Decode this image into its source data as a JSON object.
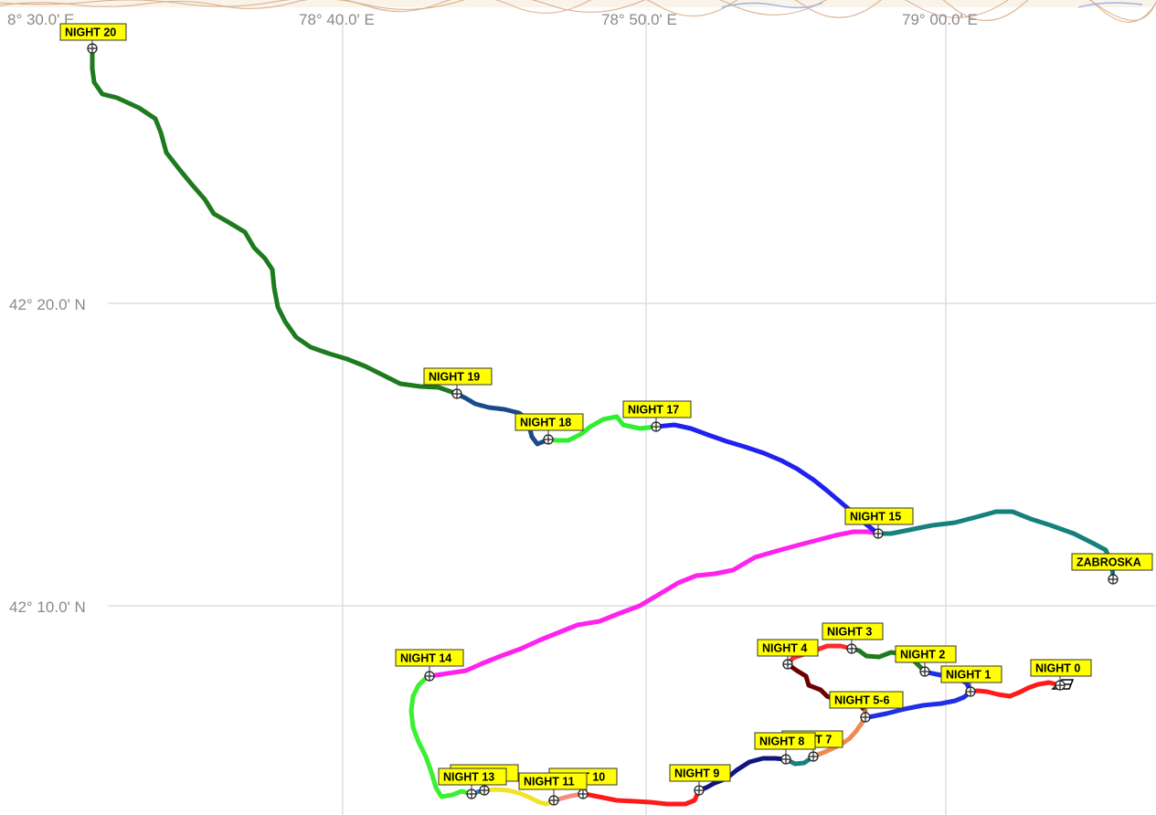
{
  "map": {
    "grid": {
      "longitude_labels": [
        "8° 30.0' E",
        "78° 40.0' E",
        "78° 50.0' E",
        "79° 00.0' E"
      ],
      "latitude_labels": [
        "42° 20.0' N",
        "42° 10.0' N"
      ]
    },
    "waypoints": [
      {
        "id": "night20",
        "label": "NIGHT 20"
      },
      {
        "id": "night19",
        "label": "NIGHT 19"
      },
      {
        "id": "night18",
        "label": "NIGHT 18"
      },
      {
        "id": "night17",
        "label": "NIGHT 17"
      },
      {
        "id": "night15",
        "label": "NIGHT 15"
      },
      {
        "id": "zabroska",
        "label": "ZABROSKA"
      },
      {
        "id": "night14",
        "label": "NIGHT 14"
      },
      {
        "id": "night3",
        "label": "NIGHT 3"
      },
      {
        "id": "night4",
        "label": "NIGHT 4"
      },
      {
        "id": "night2",
        "label": "NIGHT 2"
      },
      {
        "id": "night1",
        "label": "NIGHT 1"
      },
      {
        "id": "night0",
        "label": "NIGHT 0"
      },
      {
        "id": "night56",
        "label": "NIGHT 5-6"
      },
      {
        "id": "night7",
        "label": "NIGHT 7"
      },
      {
        "id": "night8",
        "label": "NIGHT 8"
      },
      {
        "id": "night9",
        "label": "NIGHT 9"
      },
      {
        "id": "night12",
        "label": "NIGHT 12"
      },
      {
        "id": "night13",
        "label": "NIGHT 13"
      },
      {
        "id": "night10",
        "label": "NIGHT 10"
      },
      {
        "id": "night11",
        "label": "NIGHT 11"
      }
    ],
    "track_colors": {
      "seg0": "#ff1a1a",
      "seg1": "#1f2fe6",
      "seg2": "#1e7a1e",
      "seg3": "#ff2a2a",
      "seg4": "#6b0000",
      "seg5": "#f08a50",
      "seg7": "#188080",
      "seg8": "#101580",
      "seg9": "#ff1a1a",
      "seg10": "#f09080",
      "seg11": "#f2e22a",
      "seg12": "#3a7abf",
      "seg13": "#3af030",
      "seg14": "#ff22ee",
      "seg15": "#16807c",
      "seg16": "#2020f0",
      "seg17": "#30ee30",
      "seg18": "#1a4a8a",
      "seg19": "#1e7a1e"
    }
  }
}
